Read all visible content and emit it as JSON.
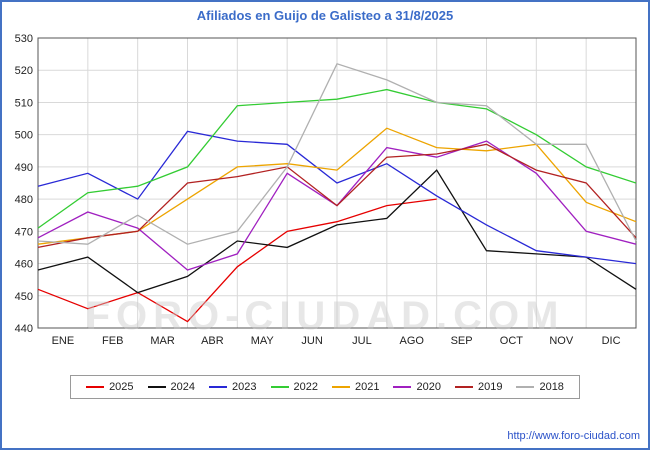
{
  "page": {
    "title": "Afiliados en Guijo de Galisteo a 31/8/2025",
    "watermark": "FORO-CIUDAD.COM",
    "source_url": "http://www.foro-ciudad.com",
    "accent_color": "#4472c4"
  },
  "chart_data": {
    "type": "line",
    "title": "Afiliados en Guijo de Galisteo a 31/8/2025",
    "x_labels": [
      "ENE",
      "FEB",
      "MAR",
      "ABR",
      "MAY",
      "JUN",
      "JUL",
      "AGO",
      "SEP",
      "OCT",
      "NOV",
      "DIC"
    ],
    "ylim": [
      440,
      530
    ],
    "ytick_step": 10,
    "grid": true,
    "legend_position": "bottom",
    "note": "13 vertices per series: start of year plus end of each month; 2025 runs through 31/8",
    "series": [
      {
        "name": "2025",
        "color": "#e60000",
        "values": [
          452,
          446,
          451,
          442,
          459,
          470,
          473,
          478,
          480
        ]
      },
      {
        "name": "2024",
        "color": "#111111",
        "values": [
          458,
          462,
          451,
          456,
          467,
          465,
          472,
          474,
          489,
          464,
          463,
          462,
          452
        ]
      },
      {
        "name": "2023",
        "color": "#2929d6",
        "values": [
          484,
          488,
          480,
          501,
          498,
          497,
          485,
          491,
          481,
          472,
          464,
          462,
          460
        ]
      },
      {
        "name": "2022",
        "color": "#33cc33",
        "values": [
          471,
          482,
          484,
          490,
          509,
          510,
          511,
          514,
          510,
          508,
          500,
          490,
          485
        ]
      },
      {
        "name": "2021",
        "color": "#eda400",
        "values": [
          466,
          468,
          470,
          480,
          490,
          491,
          489,
          502,
          496,
          495,
          497,
          479,
          473
        ]
      },
      {
        "name": "2020",
        "color": "#a020c0",
        "values": [
          468,
          476,
          471,
          458,
          463,
          488,
          478,
          496,
          493,
          498,
          488,
          470,
          466
        ]
      },
      {
        "name": "2019",
        "color": "#b22222",
        "values": [
          465,
          468,
          470,
          485,
          487,
          490,
          478,
          493,
          494,
          497,
          489,
          485,
          468
        ]
      },
      {
        "name": "2018",
        "color": "#b0b0b0",
        "values": [
          467,
          466,
          475,
          466,
          470,
          490,
          522,
          517,
          510,
          509,
          497,
          497,
          467
        ]
      }
    ]
  }
}
